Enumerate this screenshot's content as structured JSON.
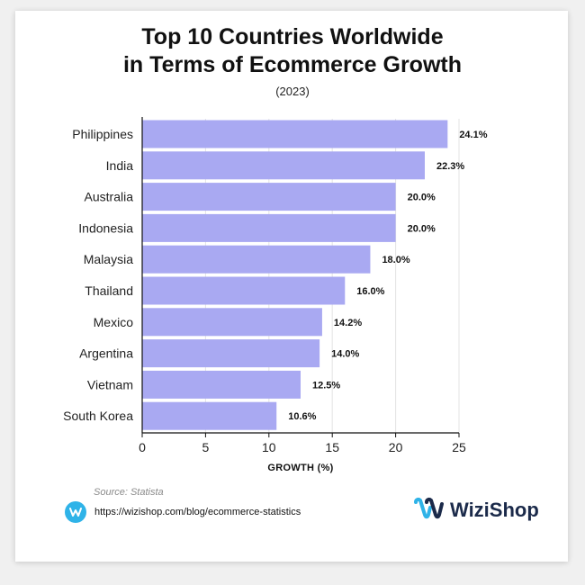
{
  "header": {
    "title_line1": "Top 10 Countries Worldwide",
    "title_line2": "in Terms of Ecommerce Growth",
    "subtitle": "(2023)"
  },
  "footer": {
    "source": "Source: Statista",
    "url": "https://wizishop.com/blog/ecommerce-statistics",
    "brand": "WiziShop"
  },
  "colors": {
    "bar": "#a9a9f2",
    "gridline": "#e3e3e3",
    "brand_blue": "#2fb3e8",
    "brand_navy": "#1b2a4a"
  },
  "chart_data": {
    "type": "bar",
    "orientation": "horizontal",
    "title": "Top 10 Countries Worldwide in Terms of Ecommerce Growth",
    "subtitle": "(2023)",
    "xlabel": "GROWTH (%)",
    "ylabel": "",
    "categories": [
      "Philippines",
      "India",
      "Australia",
      "Indonesia",
      "Malaysia",
      "Thailand",
      "Mexico",
      "Argentina",
      "Vietnam",
      "South Korea"
    ],
    "values": [
      24.1,
      22.3,
      20.0,
      20.0,
      18.0,
      16.0,
      14.2,
      14.0,
      12.5,
      10.6
    ],
    "value_labels": [
      "24.1%",
      "22.3%",
      "20.0%",
      "20.0%",
      "18.0%",
      "16.0%",
      "14.2%",
      "14.0%",
      "12.5%",
      "10.6%"
    ],
    "xlim": [
      0,
      25
    ],
    "xticks": [
      0,
      5,
      10,
      15,
      20,
      25
    ],
    "grid": true
  }
}
